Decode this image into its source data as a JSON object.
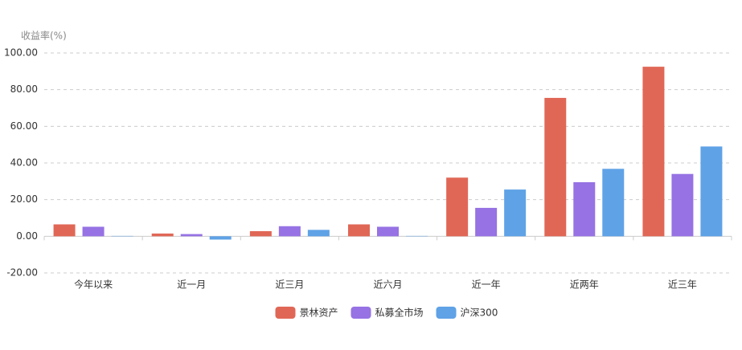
{
  "chart_data": {
    "type": "bar",
    "y_label": "收益率(%)",
    "categories": [
      "今年以来",
      "近一月",
      "近三月",
      "近六月",
      "近一年",
      "近两年",
      "近三年"
    ],
    "series": [
      {
        "name": "景林资产",
        "color": "#e06756",
        "values": [
          6.5,
          1.5,
          2.8,
          6.5,
          32,
          75.5,
          92.5
        ]
      },
      {
        "name": "私募全市场",
        "color": "#9672e4",
        "values": [
          5.2,
          1.2,
          5.5,
          5.2,
          15.5,
          29.5,
          34
        ]
      },
      {
        "name": "沪深300",
        "color": "#5fa2e6",
        "values": [
          0.2,
          -1.8,
          3.5,
          0.2,
          25.5,
          36.8,
          49
        ]
      }
    ],
    "ylim": [
      -20,
      100
    ],
    "yticks": [
      {
        "value": -20,
        "label": "-20.00"
      },
      {
        "value": 0,
        "label": "0.00"
      },
      {
        "value": 20,
        "label": "20.00"
      },
      {
        "value": 40,
        "label": "40.00"
      },
      {
        "value": 60,
        "label": "60.00"
      },
      {
        "value": 80,
        "label": "80.00"
      },
      {
        "value": 100,
        "label": "100.00"
      }
    ],
    "grid": true
  }
}
